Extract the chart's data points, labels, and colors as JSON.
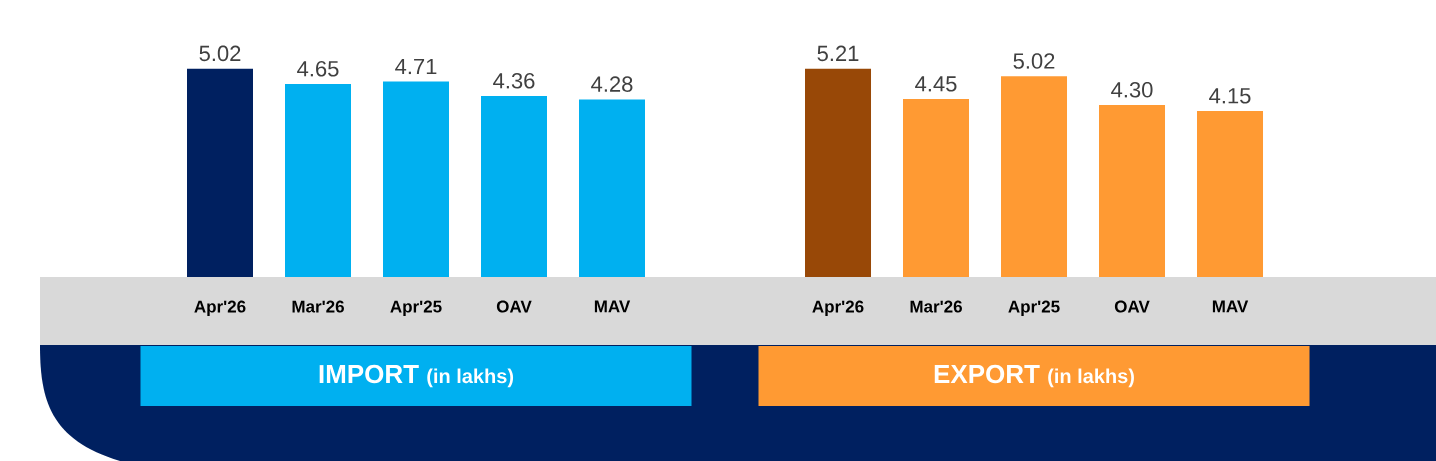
{
  "chart_data": [
    {
      "type": "bar",
      "title": "IMPORT",
      "subtitle": "(in lakhs)",
      "categories": [
        "Apr'26",
        "Mar'26",
        "Apr'25",
        "OAV",
        "MAV"
      ],
      "values": [
        5.02,
        4.65,
        4.71,
        4.36,
        4.28
      ],
      "value_labels": [
        "5.02",
        "4.65",
        "4.71",
        "4.36",
        "4.28"
      ],
      "colors": [
        "#002060",
        "#00b0f0",
        "#00b0f0",
        "#00b0f0",
        "#00b0f0"
      ]
    },
    {
      "type": "bar",
      "title": "EXPORT",
      "subtitle": "(in lakhs)",
      "categories": [
        "Apr'26",
        "Mar'26",
        "Apr'25",
        "OAV",
        "MAV"
      ],
      "values": [
        5.21,
        4.45,
        5.02,
        4.3,
        4.15
      ],
      "value_labels": [
        "5.21",
        "4.45",
        "5.02",
        "4.30",
        "4.15"
      ],
      "colors": [
        "#984807",
        "#ff9a33",
        "#ff9a33",
        "#ff9a33",
        "#ff9a33"
      ]
    }
  ]
}
